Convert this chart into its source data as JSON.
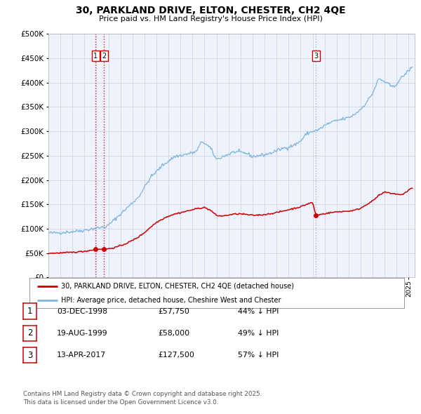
{
  "title": "30, PARKLAND DRIVE, ELTON, CHESTER, CH2 4QE",
  "subtitle": "Price paid vs. HM Land Registry's House Price Index (HPI)",
  "bg_color": "#ffffff",
  "plot_bg_color": "#eef2fb",
  "grid_color": "#c8cfe0",
  "hpi_color": "#7ab3d9",
  "price_color": "#cc0000",
  "vline_color_red": "#cc0000",
  "vline_color_gray": "#aaaaaa",
  "transactions": [
    {
      "date_num": 1998.92,
      "price": 57750,
      "label": "1"
    },
    {
      "date_num": 1999.63,
      "price": 58000,
      "label": "2"
    },
    {
      "date_num": 2017.28,
      "price": 127500,
      "label": "3"
    }
  ],
  "legend_entries": [
    "30, PARKLAND DRIVE, ELTON, CHESTER, CH2 4QE (detached house)",
    "HPI: Average price, detached house, Cheshire West and Chester"
  ],
  "table_rows": [
    {
      "num": "1",
      "date": "03-DEC-1998",
      "price": "£57,750",
      "note": "44% ↓ HPI"
    },
    {
      "num": "2",
      "date": "19-AUG-1999",
      "price": "£58,000",
      "note": "49% ↓ HPI"
    },
    {
      "num": "3",
      "date": "13-APR-2017",
      "price": "£127,500",
      "note": "57% ↓ HPI"
    }
  ],
  "footer_line1": "Contains HM Land Registry data © Crown copyright and database right 2025.",
  "footer_line2": "This data is licensed under the Open Government Licence v3.0.",
  "ylim": [
    0,
    500000
  ],
  "yticks": [
    0,
    50000,
    100000,
    150000,
    200000,
    250000,
    300000,
    350000,
    400000,
    450000,
    500000
  ],
  "xlim_start": 1995.0,
  "xlim_end": 2025.5
}
